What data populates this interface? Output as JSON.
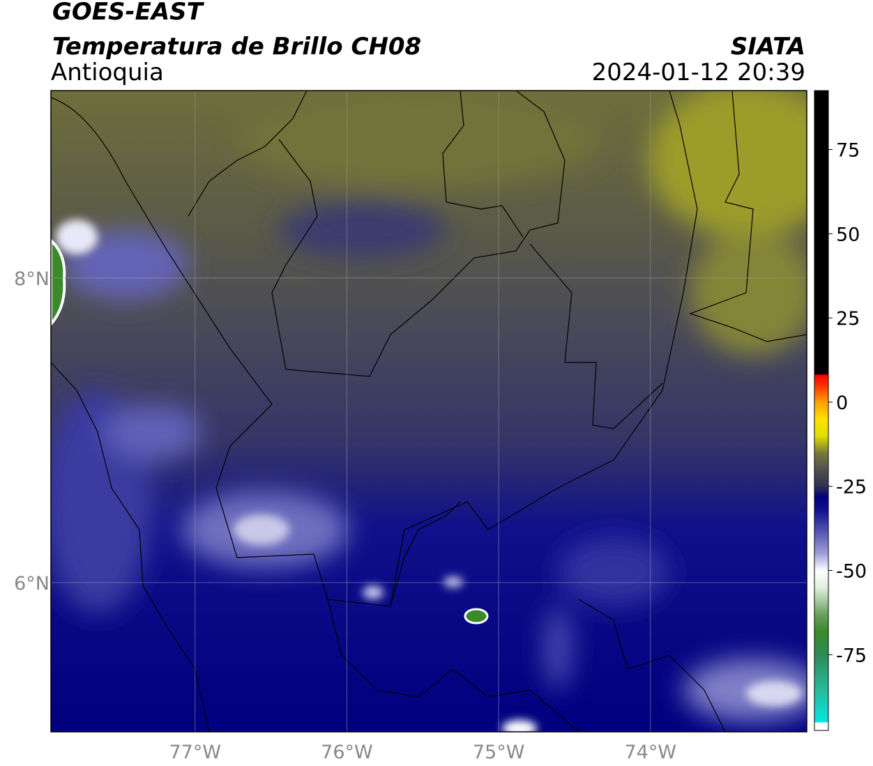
{
  "title": "GOES-EAST",
  "subtitle": "Temperatura de Brillo CH08",
  "region": "Antioquia",
  "source": "SIATA",
  "timestamp": "2024-01-12 20:39",
  "map": {
    "xlim": [
      -77.95,
      -72.97
    ],
    "ylim": [
      5.02,
      9.23
    ],
    "xticks": [
      {
        "value": -77,
        "label": "77°W"
      },
      {
        "value": -76,
        "label": "76°W"
      },
      {
        "value": -75,
        "label": "75°W"
      },
      {
        "value": -74,
        "label": "74°W"
      }
    ],
    "yticks": [
      {
        "value": 6,
        "label": "6°N"
      },
      {
        "value": 8,
        "label": "8°N"
      }
    ],
    "grid": true
  },
  "colorbar": {
    "clim": [
      -97.5,
      92.5
    ],
    "ticks": [
      -75,
      -50,
      -25,
      0,
      25,
      50,
      75
    ],
    "colormap": [
      {
        "value": -97.5,
        "color": "#ffffff"
      },
      {
        "value": -95,
        "color": "#ffffff"
      },
      {
        "value": -95,
        "color": "#00e8e0"
      },
      {
        "value": -85,
        "color": "#2ab89a"
      },
      {
        "value": -75,
        "color": "#2e8b57"
      },
      {
        "value": -68,
        "color": "#3a8a2a"
      },
      {
        "value": -63,
        "color": "#6aa060"
      },
      {
        "value": -55,
        "color": "#e0f0e0"
      },
      {
        "value": -50,
        "color": "#ffffff"
      },
      {
        "value": -45,
        "color": "#a0a0d8"
      },
      {
        "value": -38,
        "color": "#5050b0"
      },
      {
        "value": -32,
        "color": "#101090"
      },
      {
        "value": -28,
        "color": "#00007a"
      },
      {
        "value": -25,
        "color": "#303050"
      },
      {
        "value": -20,
        "color": "#505050"
      },
      {
        "value": -15,
        "color": "#7a7a3a"
      },
      {
        "value": -10,
        "color": "#e0e000"
      },
      {
        "value": -5,
        "color": "#ffe000"
      },
      {
        "value": 0,
        "color": "#ffa000"
      },
      {
        "value": 5,
        "color": "#ff3000"
      },
      {
        "value": 8,
        "color": "#ff0000"
      },
      {
        "value": 8.5,
        "color": "#000000"
      },
      {
        "value": 92.5,
        "color": "#000000"
      }
    ]
  }
}
